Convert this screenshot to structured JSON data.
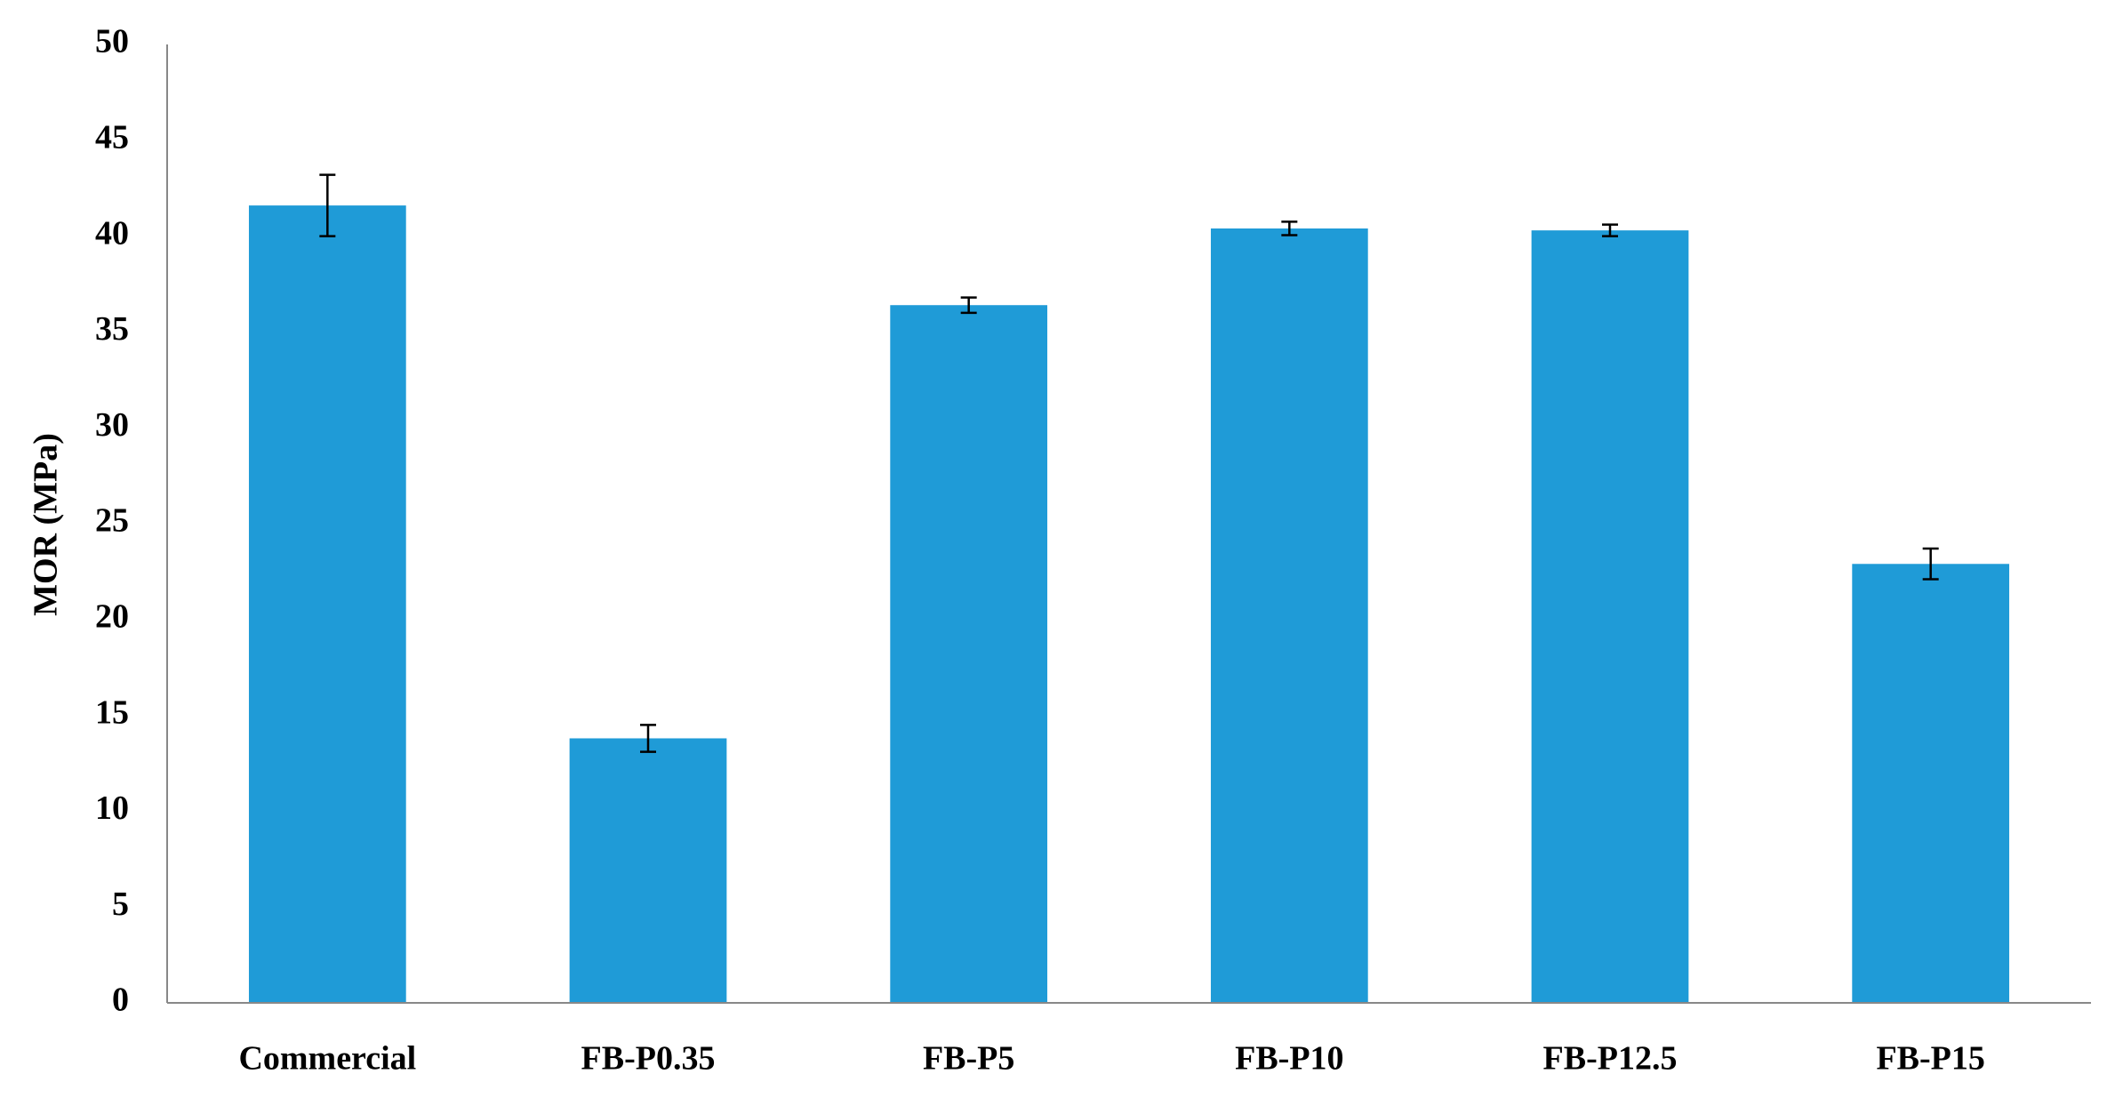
{
  "chart_data": {
    "type": "bar",
    "ylabel": "MOR (MPa)",
    "categories": [
      "Commercial",
      "FB-P0.35",
      "FB-P5",
      "FB-P10",
      "FB-P12.5",
      "FB-P15"
    ],
    "values": [
      41.6,
      13.8,
      36.4,
      40.4,
      40.3,
      22.9
    ],
    "errors": [
      1.6,
      0.7,
      0.4,
      0.35,
      0.3,
      0.8
    ],
    "color": "#1f9bd7",
    "ylim": [
      0,
      50
    ],
    "yticks": [
      0,
      5,
      10,
      15,
      20,
      25,
      30,
      35,
      40,
      45,
      50
    ],
    "grid": false
  }
}
